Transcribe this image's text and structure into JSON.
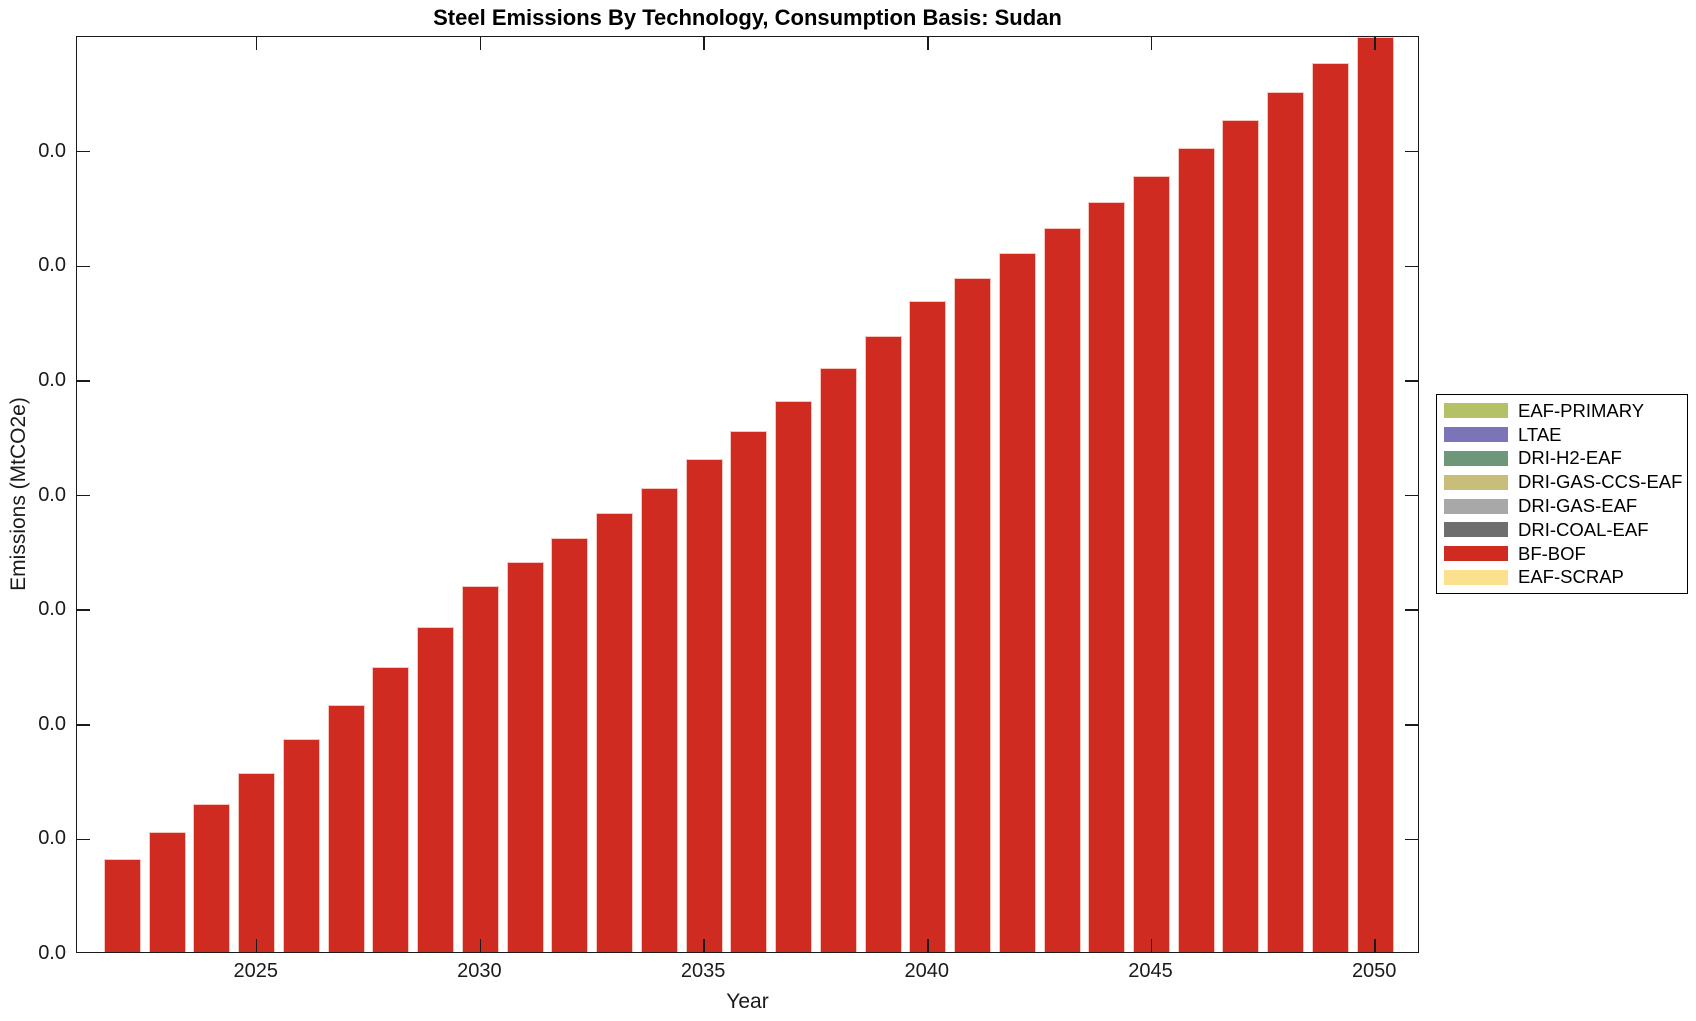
{
  "figure": {
    "background": "#ffffff",
    "axis_color": "#1a1a1a"
  },
  "chart_data": {
    "type": "bar",
    "title": "Steel Emissions By Technology, Consumption Basis: Sudan",
    "xlabel": "Year",
    "ylabel": "Emissions (MtCO2e)",
    "grid": "off",
    "x": [
      2022,
      2023,
      2024,
      2025,
      2026,
      2027,
      2028,
      2029,
      2030,
      2031,
      2032,
      2033,
      2034,
      2035,
      2036,
      2037,
      2038,
      2039,
      2040,
      2041,
      2042,
      2043,
      2044,
      2045,
      2046,
      2047,
      2048,
      2049,
      2050
    ],
    "bar_series_name": "BF-BOF",
    "bar_color": "#d02b20",
    "values_mtco2e_estimated": [
      0.00406,
      0.00524,
      0.00646,
      0.00781,
      0.00929,
      0.01078,
      0.01243,
      0.01418,
      0.01597,
      0.01702,
      0.01806,
      0.01915,
      0.02024,
      0.02151,
      0.02273,
      0.02404,
      0.02548,
      0.02688,
      0.0284,
      0.02941,
      0.0305,
      0.03159,
      0.03272,
      0.03386,
      0.03508,
      0.0363,
      0.03752,
      0.03879,
      0.04001
    ],
    "ylim": [
      0,
      0.04
    ],
    "y_tick_interval": 0.005,
    "y_tick_labels_shown": [
      "0.0",
      "0.0",
      "0.0",
      "0.0",
      "0.0",
      "0.0",
      "0.0",
      "0.0"
    ],
    "x_tick_years": [
      2025,
      2030,
      2035,
      2040,
      2045,
      2050
    ],
    "x_tick_labels": [
      "2025",
      "2030",
      "2035",
      "2040",
      "2045",
      "2050"
    ],
    "legend": {
      "position": "outside-right",
      "entries": [
        {
          "label": "EAF-PRIMARY",
          "color": "#b5c167"
        },
        {
          "label": "LTAE",
          "color": "#7b74b8"
        },
        {
          "label": "DRI-H2-EAF",
          "color": "#6e9679"
        },
        {
          "label": "DRI-GAS-CCS-EAF",
          "color": "#c9bd7a"
        },
        {
          "label": "DRI-GAS-EAF",
          "color": "#a8a8a8"
        },
        {
          "label": "DRI-COAL-EAF",
          "color": "#6e6e6e"
        },
        {
          "label": "BF-BOF",
          "color": "#d02b20"
        },
        {
          "label": "EAF-SCRAP",
          "color": "#fbe08d"
        }
      ]
    }
  }
}
